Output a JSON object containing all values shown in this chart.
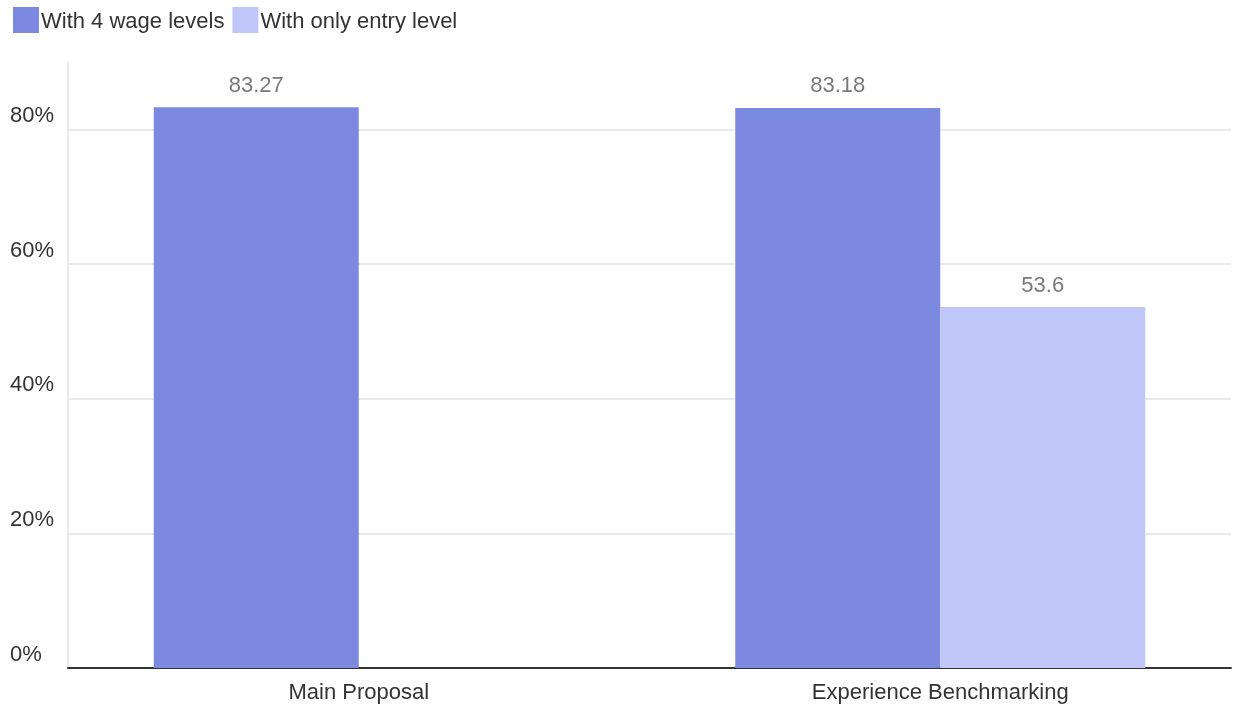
{
  "chart_data": {
    "type": "bar",
    "categories": [
      "Main Proposal",
      "Experience Benchmarking"
    ],
    "series": [
      {
        "name": "With 4 wage levels",
        "color": "#7b8ae0",
        "values": [
          83.27,
          83.18
        ]
      },
      {
        "name": "With only entry level",
        "color": "#c0c6f7",
        "values": [
          null,
          53.6
        ]
      }
    ],
    "ylim": [
      0,
      90
    ],
    "yticks": [
      {
        "value": 0,
        "label": "0%"
      },
      {
        "value": 20,
        "label": "20%"
      },
      {
        "value": 40,
        "label": "40%"
      },
      {
        "value": 60,
        "label": "60%"
      },
      {
        "value": 80,
        "label": "80%"
      }
    ],
    "grid": "y",
    "legend": "top left",
    "data_labels": true
  }
}
